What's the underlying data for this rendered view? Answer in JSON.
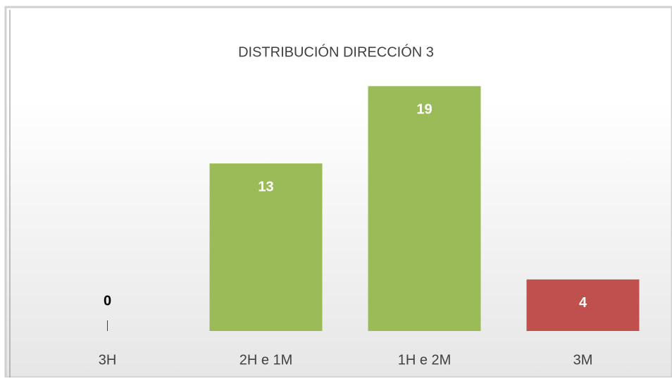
{
  "chart_data": {
    "type": "bar",
    "title": "DISTRIBUCIÓN DIRECCIÓN 3",
    "categories": [
      "3H",
      "2H e 1M",
      "1H e 2M",
      "3M"
    ],
    "values": [
      0,
      13,
      19,
      4
    ],
    "colors": [
      "#9bbb59",
      "#9bbb59",
      "#9bbb59",
      "#c0504d"
    ],
    "ylim": [
      0,
      20
    ]
  }
}
